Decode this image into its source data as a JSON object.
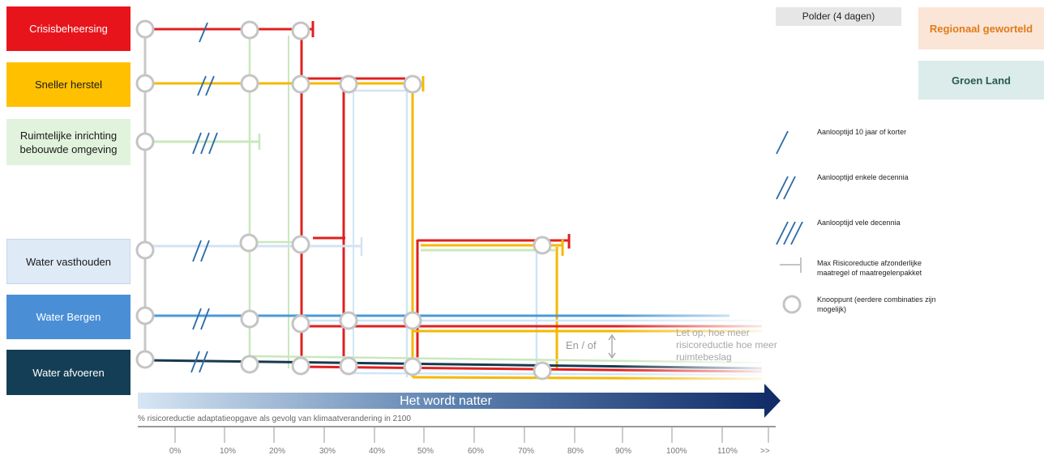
{
  "lines": {
    "crisis": {
      "label": "Crisisbeheersing",
      "color": "#e02020",
      "bg": "#e8141c",
      "fg": "#ffffff"
    },
    "herstel": {
      "label": "Sneller herstel",
      "color": "#f5b800",
      "bg": "#ffc000",
      "fg": "#1a1a1a"
    },
    "ruimte": {
      "label": "Ruimtelijke inrichting bebouwde omgeving",
      "color": "#b8e0a8",
      "bg": "#e1f3dc",
      "fg": "#1a1a1a"
    },
    "vasthouden": {
      "label": "Water vasthouden",
      "color": "#c4d8ee",
      "bg": "#dfeaf7",
      "fg": "#1a1a1a"
    },
    "bergen": {
      "label": "Water Bergen",
      "color": "#4b9ad8",
      "bg": "#4a8fd6",
      "fg": "#ffffff"
    },
    "afvoeren": {
      "label": "Water afvoeren",
      "color": "#17394f",
      "bg": "#143e55",
      "fg": "#ffffff"
    }
  },
  "header": {
    "polder": "Polder (4 dagen)",
    "regionaal": "Regionaal geworteld",
    "groen": "Groen Land"
  },
  "legend": {
    "short": "Aanlooptijd 10 jaar of korter",
    "medium": "Aanlooptijd enkele decennia",
    "long": "Aanlooptijd vele decennia",
    "max": "Max Risicoreductie afzonderlijke maatregel of maatregelenpakket",
    "node": "Knooppunt (eerdere combinaties zijn mogelijk)"
  },
  "annotations": {
    "en_of": "En / of",
    "note": "Let op, hoe meer risicoreductie hoe meer ruimtebeslag"
  },
  "arrow": {
    "label": "Het wordt natter"
  },
  "axis": {
    "caption": "% risicoreductie adaptatieopgave als gevolg van klimaatverandering in 2100",
    "ticks": [
      "0%",
      "10%",
      "20%",
      "30%",
      "40%",
      "50%",
      "60%",
      "70%",
      "80%",
      "90%",
      "100%",
      "110%",
      ">>"
    ]
  }
}
